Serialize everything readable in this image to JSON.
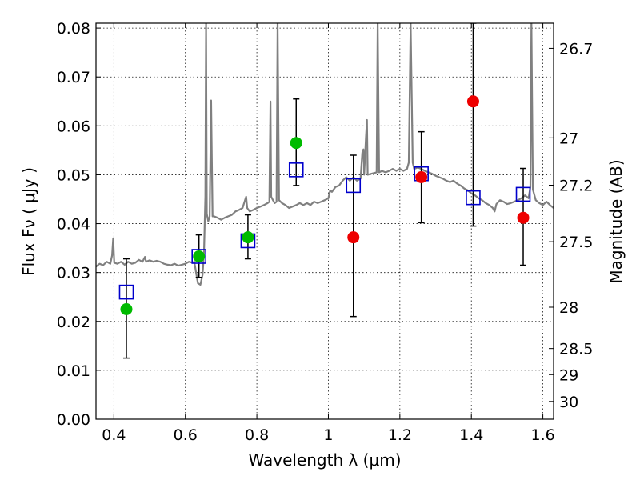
{
  "chart_data": {
    "type": "scatter",
    "title": "",
    "xlabel": "Wavelength  λ (μm)",
    "ylabel": "Flux  Fν  ( μJy )",
    "y2label": "Magnitude (AB)",
    "xlim": [
      0.35,
      1.63
    ],
    "ylim": [
      0.0,
      0.081
    ],
    "grid": true,
    "xticks": [
      {
        "value": 0.4,
        "label": "0.4"
      },
      {
        "value": 0.6,
        "label": "0.6"
      },
      {
        "value": 0.8,
        "label": "0.8"
      },
      {
        "value": 1.0,
        "label": "1"
      },
      {
        "value": 1.2,
        "label": "1.2"
      },
      {
        "value": 1.4,
        "label": "1.4"
      },
      {
        "value": 1.6,
        "label": "1.6"
      }
    ],
    "yticks": [
      {
        "value": 0.0,
        "label": "0.00"
      },
      {
        "value": 0.01,
        "label": "0.01"
      },
      {
        "value": 0.02,
        "label": "0.02"
      },
      {
        "value": 0.03,
        "label": "0.03"
      },
      {
        "value": 0.04,
        "label": "0.04"
      },
      {
        "value": 0.05,
        "label": "0.05"
      },
      {
        "value": 0.06,
        "label": "0.06"
      },
      {
        "value": 0.07,
        "label": "0.07"
      },
      {
        "value": 0.08,
        "label": "0.08"
      }
    ],
    "y2ticks": [
      {
        "mag": 26.7,
        "label": "26.7"
      },
      {
        "mag": 27.0,
        "label": "27"
      },
      {
        "mag": 27.2,
        "label": "27.2"
      },
      {
        "mag": 27.5,
        "label": "27.5"
      },
      {
        "mag": 28.0,
        "label": "28"
      },
      {
        "mag": 28.5,
        "label": "28.5"
      },
      {
        "mag": 29.0,
        "label": "29"
      },
      {
        "mag": 30.0,
        "label": "30"
      }
    ],
    "model_spectrum": {
      "color": "#808080",
      "points": [
        [
          0.35,
          0.0312
        ],
        [
          0.36,
          0.0318
        ],
        [
          0.37,
          0.0315
        ],
        [
          0.38,
          0.0322
        ],
        [
          0.39,
          0.0318
        ],
        [
          0.395,
          0.0335
        ],
        [
          0.398,
          0.037
        ],
        [
          0.401,
          0.032
        ],
        [
          0.41,
          0.0318
        ],
        [
          0.42,
          0.0322
        ],
        [
          0.43,
          0.0316
        ],
        [
          0.44,
          0.0322
        ],
        [
          0.45,
          0.0318
        ],
        [
          0.46,
          0.032
        ],
        [
          0.47,
          0.0326
        ],
        [
          0.48,
          0.0322
        ],
        [
          0.487,
          0.0332
        ],
        [
          0.49,
          0.0322
        ],
        [
          0.5,
          0.0325
        ],
        [
          0.51,
          0.0322
        ],
        [
          0.52,
          0.0324
        ],
        [
          0.53,
          0.0322
        ],
        [
          0.54,
          0.0318
        ],
        [
          0.55,
          0.0316
        ],
        [
          0.56,
          0.0315
        ],
        [
          0.57,
          0.0318
        ],
        [
          0.58,
          0.0314
        ],
        [
          0.59,
          0.0316
        ],
        [
          0.6,
          0.0318
        ],
        [
          0.61,
          0.0322
        ],
        [
          0.62,
          0.032
        ],
        [
          0.625,
          0.0322
        ],
        [
          0.63,
          0.03
        ],
        [
          0.635,
          0.0278
        ],
        [
          0.642,
          0.0275
        ],
        [
          0.648,
          0.0295
        ],
        [
          0.652,
          0.034
        ],
        [
          0.656,
          0.0455
        ],
        [
          0.658,
          0.081
        ],
        [
          0.66,
          0.042
        ],
        [
          0.664,
          0.0405
        ],
        [
          0.668,
          0.0415
        ],
        [
          0.672,
          0.0652
        ],
        [
          0.676,
          0.0415
        ],
        [
          0.68,
          0.0415
        ],
        [
          0.69,
          0.0412
        ],
        [
          0.7,
          0.0408
        ],
        [
          0.71,
          0.0412
        ],
        [
          0.72,
          0.0415
        ],
        [
          0.73,
          0.0418
        ],
        [
          0.74,
          0.0425
        ],
        [
          0.75,
          0.0428
        ],
        [
          0.76,
          0.0432
        ],
        [
          0.767,
          0.0448
        ],
        [
          0.77,
          0.0455
        ],
        [
          0.773,
          0.0432
        ],
        [
          0.78,
          0.0425
        ],
        [
          0.79,
          0.0428
        ],
        [
          0.8,
          0.0432
        ],
        [
          0.81,
          0.0435
        ],
        [
          0.82,
          0.0438
        ],
        [
          0.83,
          0.0442
        ],
        [
          0.835,
          0.0445
        ],
        [
          0.838,
          0.065
        ],
        [
          0.84,
          0.0455
        ],
        [
          0.845,
          0.0448
        ],
        [
          0.85,
          0.0442
        ],
        [
          0.855,
          0.0445
        ],
        [
          0.858,
          0.081
        ],
        [
          0.862,
          0.0448
        ],
        [
          0.87,
          0.0442
        ],
        [
          0.88,
          0.0438
        ],
        [
          0.89,
          0.0432
        ],
        [
          0.9,
          0.0435
        ],
        [
          0.91,
          0.0438
        ],
        [
          0.92,
          0.0442
        ],
        [
          0.93,
          0.0438
        ],
        [
          0.94,
          0.0442
        ],
        [
          0.95,
          0.0438
        ],
        [
          0.96,
          0.0445
        ],
        [
          0.97,
          0.0442
        ],
        [
          0.98,
          0.0445
        ],
        [
          0.99,
          0.0448
        ],
        [
          1.0,
          0.0452
        ],
        [
          1.005,
          0.0468
        ],
        [
          1.01,
          0.0465
        ],
        [
          1.02,
          0.0475
        ],
        [
          1.03,
          0.0478
        ],
        [
          1.04,
          0.0488
        ],
        [
          1.05,
          0.0495
        ],
        [
          1.06,
          0.0488
        ],
        [
          1.07,
          0.0495
        ],
        [
          1.08,
          0.0488
        ],
        [
          1.09,
          0.0492
        ],
        [
          1.095,
          0.0545
        ],
        [
          1.098,
          0.0552
        ],
        [
          1.1,
          0.05
        ],
        [
          1.105,
          0.0575
        ],
        [
          1.108,
          0.0612
        ],
        [
          1.11,
          0.05
        ],
        [
          1.12,
          0.0502
        ],
        [
          1.135,
          0.0505
        ],
        [
          1.138,
          0.081
        ],
        [
          1.142,
          0.0505
        ],
        [
          1.15,
          0.0508
        ],
        [
          1.16,
          0.0505
        ],
        [
          1.17,
          0.0508
        ],
        [
          1.18,
          0.0512
        ],
        [
          1.19,
          0.0508
        ],
        [
          1.2,
          0.0512
        ],
        [
          1.21,
          0.0508
        ],
        [
          1.22,
          0.0512
        ],
        [
          1.225,
          0.0525
        ],
        [
          1.23,
          0.081
        ],
        [
          1.236,
          0.0525
        ],
        [
          1.24,
          0.0512
        ],
        [
          1.25,
          0.0515
        ],
        [
          1.26,
          0.0512
        ],
        [
          1.27,
          0.0508
        ],
        [
          1.28,
          0.0505
        ],
        [
          1.29,
          0.0502
        ],
        [
          1.3,
          0.0498
        ],
        [
          1.31,
          0.0495
        ],
        [
          1.32,
          0.0492
        ],
        [
          1.33,
          0.0488
        ],
        [
          1.34,
          0.0485
        ],
        [
          1.35,
          0.0488
        ],
        [
          1.36,
          0.0482
        ],
        [
          1.37,
          0.0478
        ],
        [
          1.38,
          0.0472
        ],
        [
          1.39,
          0.0468
        ],
        [
          1.4,
          0.0462
        ],
        [
          1.41,
          0.0458
        ],
        [
          1.42,
          0.0452
        ],
        [
          1.43,
          0.0448
        ],
        [
          1.44,
          0.0442
        ],
        [
          1.45,
          0.0438
        ],
        [
          1.46,
          0.0432
        ],
        [
          1.465,
          0.0425
        ],
        [
          1.47,
          0.044
        ],
        [
          1.48,
          0.0448
        ],
        [
          1.49,
          0.0445
        ],
        [
          1.5,
          0.044
        ],
        [
          1.51,
          0.0442
        ],
        [
          1.52,
          0.0445
        ],
        [
          1.53,
          0.0448
        ],
        [
          1.54,
          0.0452
        ],
        [
          1.55,
          0.0458
        ],
        [
          1.56,
          0.0452
        ],
        [
          1.565,
          0.0475
        ],
        [
          1.568,
          0.081
        ],
        [
          1.572,
          0.047
        ],
        [
          1.58,
          0.0448
        ],
        [
          1.59,
          0.0442
        ],
        [
          1.6,
          0.0438
        ],
        [
          1.61,
          0.0445
        ],
        [
          1.62,
          0.0438
        ],
        [
          1.63,
          0.0432
        ]
      ]
    },
    "series": [
      {
        "marker": "open-square",
        "color": "#0000cc",
        "x": [
          0.435,
          0.638,
          0.775,
          0.91,
          1.07,
          1.26,
          1.405,
          1.545
        ],
        "y": [
          0.026,
          0.0333,
          0.0365,
          0.051,
          0.0478,
          0.0502,
          0.0453,
          0.046
        ]
      },
      {
        "marker": "filled-circle",
        "color": "#00bb00",
        "x": [
          0.435,
          0.638,
          0.775,
          0.91
        ],
        "y": [
          0.0225,
          0.0333,
          0.0372,
          0.0565
        ],
        "err": [
          [
            0.0125,
            0.0328
          ],
          [
            0.029,
            0.0377
          ],
          [
            0.0328,
            0.0418
          ],
          [
            0.0478,
            0.0655
          ]
        ]
      },
      {
        "marker": "filled-circle",
        "color": "#ee0000",
        "x": [
          1.07,
          1.26,
          1.405,
          1.545
        ],
        "y": [
          0.0372,
          0.0495,
          0.065,
          0.0412
        ],
        "err": [
          [
            0.021,
            0.054
          ],
          [
            0.0402,
            0.0588
          ],
          [
            0.0395,
            0.081
          ],
          [
            0.0315,
            0.0513
          ]
        ]
      }
    ]
  }
}
